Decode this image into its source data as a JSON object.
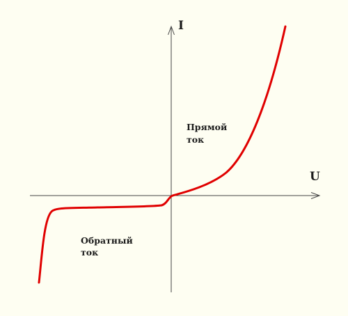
{
  "labels": {
    "current_axis": "I",
    "voltage_axis": "U",
    "forward_line1": "Прямой",
    "forward_line2": "ток",
    "reverse_line1": "Обратный",
    "reverse_line2": "ток"
  },
  "colors": {
    "background": "#fefef2",
    "axis": "#444444",
    "curve": "#e00000",
    "text": "#1a1a1a"
  }
}
